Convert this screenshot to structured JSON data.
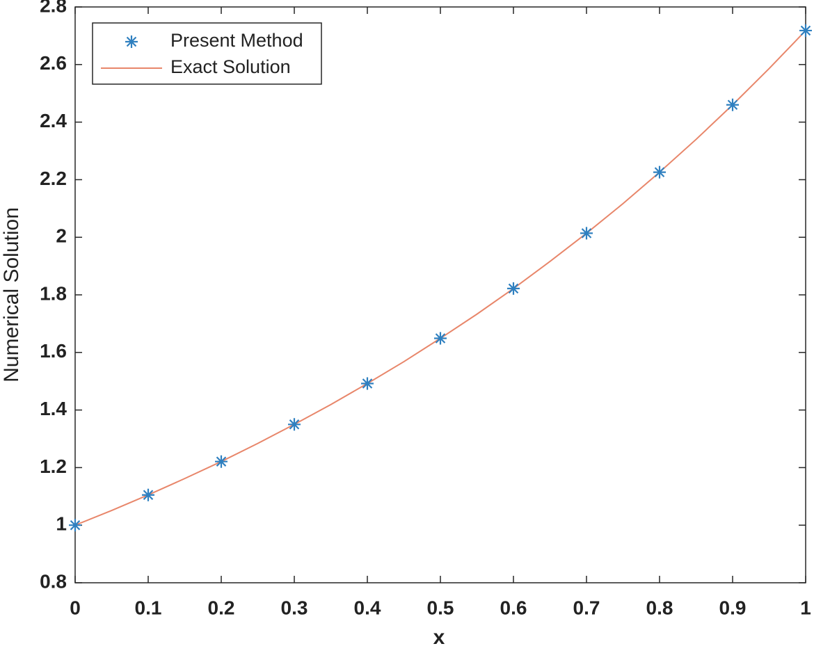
{
  "chart_data": {
    "type": "line",
    "x_label": "x",
    "y_label": "Numerical Solution",
    "xlim": [
      0,
      1
    ],
    "ylim": [
      0.8,
      2.8
    ],
    "xticks": [
      0,
      0.1,
      0.2,
      0.3,
      0.4,
      0.5,
      0.6,
      0.7,
      0.8,
      0.9,
      1
    ],
    "yticks": [
      0.8,
      1,
      1.2,
      1.4,
      1.6,
      1.8,
      2,
      2.2,
      2.4,
      2.6,
      2.8
    ],
    "legend": "upper left",
    "series": [
      {
        "name": "Present Method",
        "color": "#2f80c0",
        "marker": "asterisk",
        "x": [
          0,
          0.1,
          0.2,
          0.3,
          0.4,
          0.5,
          0.6,
          0.7,
          0.8,
          0.9,
          1
        ],
        "values": [
          1,
          1.105,
          1.221,
          1.35,
          1.492,
          1.649,
          1.822,
          2.014,
          2.226,
          2.46,
          2.718
        ]
      },
      {
        "name": "Exact Solution",
        "color": "#e8866a",
        "marker": "none",
        "x": [
          0,
          0.05,
          0.1,
          0.15,
          0.2,
          0.25,
          0.3,
          0.35,
          0.4,
          0.45,
          0.5,
          0.55,
          0.6,
          0.65,
          0.7,
          0.75,
          0.8,
          0.85,
          0.9,
          0.95,
          1
        ],
        "values": [
          1,
          1.051,
          1.105,
          1.162,
          1.221,
          1.284,
          1.35,
          1.419,
          1.492,
          1.568,
          1.649,
          1.733,
          1.822,
          1.916,
          2.014,
          2.117,
          2.226,
          2.34,
          2.46,
          2.586,
          2.718
        ]
      }
    ]
  }
}
